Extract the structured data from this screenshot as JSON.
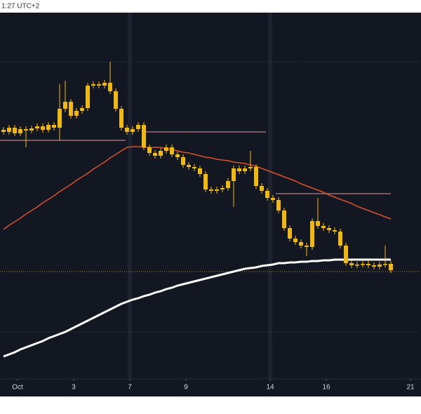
{
  "chart_data": {
    "type": "candlestick",
    "header": "1:27 UTC+2",
    "candle_color": "#f2b90d",
    "x": [
      -0.5,
      -0.3,
      -0.1,
      0.1,
      0.3,
      0.5,
      0.7,
      0.9,
      1.1,
      1.3,
      1.5,
      1.7,
      1.9,
      2.1,
      2.3,
      2.5,
      2.7,
      2.9,
      3.1,
      3.3,
      3.5,
      3.7,
      3.9,
      4.1,
      4.3,
      4.5,
      4.7,
      4.9,
      5.1,
      5.3,
      5.5,
      5.7,
      5.9,
      6.1,
      6.3,
      6.5,
      6.7,
      6.9,
      7.1,
      7.3,
      7.5,
      7.7,
      7.9,
      8.1,
      8.3,
      8.5,
      8.7,
      8.9,
      9.1,
      9.3,
      9.5,
      9.7,
      9.9,
      10.1,
      10.3,
      10.5,
      10.7,
      10.9,
      11.1,
      11.3,
      11.5,
      11.7,
      11.9,
      12.1,
      12.3,
      12.5,
      12.7,
      12.9,
      13.1,
      13.3
    ],
    "open": [
      355,
      352,
      358,
      350,
      356,
      354,
      357,
      360,
      355,
      362,
      358,
      385,
      395,
      375,
      382,
      386,
      418,
      420,
      418,
      422,
      410,
      385,
      358,
      352,
      356,
      362,
      330,
      322,
      318,
      325,
      330,
      320,
      316,
      305,
      302,
      300,
      292,
      270,
      268,
      270,
      272,
      282,
      300,
      296,
      300,
      302,
      275,
      268,
      258,
      255,
      240,
      215,
      200,
      195,
      190,
      188,
      225,
      218,
      215,
      212,
      210,
      190,
      165,
      162,
      163,
      164,
      162,
      160,
      163,
      164
    ],
    "high": [
      359,
      362,
      362,
      360,
      360,
      361,
      364,
      364,
      366,
      366,
      420,
      425,
      399,
      386,
      390,
      422,
      424,
      424,
      426,
      452,
      414,
      389,
      362,
      360,
      366,
      366,
      334,
      326,
      329,
      334,
      334,
      324,
      320,
      309,
      306,
      304,
      296,
      274,
      274,
      276,
      286,
      304,
      304,
      304,
      325,
      306,
      279,
      272,
      262,
      259,
      244,
      219,
      204,
      199,
      194,
      229,
      258,
      222,
      219,
      216,
      214,
      194,
      169,
      167,
      168,
      168,
      166,
      167,
      190,
      168
    ],
    "low": [
      348,
      348,
      346,
      346,
      330,
      350,
      353,
      351,
      351,
      354,
      340,
      380,
      371,
      371,
      378,
      382,
      414,
      414,
      414,
      406,
      381,
      354,
      348,
      348,
      352,
      326,
      318,
      314,
      314,
      321,
      316,
      312,
      301,
      298,
      296,
      288,
      266,
      264,
      264,
      266,
      268,
      245,
      292,
      292,
      296,
      271,
      264,
      254,
      251,
      236,
      211,
      196,
      191,
      186,
      175,
      184,
      214,
      211,
      208,
      206,
      186,
      161,
      158,
      158,
      159,
      158,
      156,
      156,
      159,
      151
    ],
    "close": [
      352,
      358,
      350,
      356,
      354,
      357,
      360,
      355,
      362,
      358,
      385,
      395,
      375,
      382,
      386,
      418,
      420,
      418,
      422,
      410,
      385,
      358,
      352,
      356,
      362,
      330,
      322,
      318,
      325,
      330,
      320,
      316,
      305,
      302,
      300,
      292,
      270,
      268,
      270,
      272,
      282,
      300,
      296,
      300,
      302,
      275,
      268,
      258,
      255,
      240,
      215,
      200,
      195,
      190,
      188,
      225,
      218,
      215,
      212,
      210,
      190,
      165,
      162,
      163,
      164,
      162,
      160,
      163,
      164,
      155
    ],
    "series": [
      {
        "color": "#d9502a",
        "values": [
          213,
          219,
          224,
          229,
          235,
          240,
          245,
          251,
          256,
          261,
          267,
          272,
          277,
          283,
          288,
          293,
          299,
          304,
          309,
          315,
          320,
          325,
          330,
          331,
          331,
          330,
          330,
          330,
          330,
          328,
          327,
          325,
          323,
          322,
          320,
          318,
          316,
          315,
          313,
          312,
          311,
          309,
          308,
          307,
          305,
          303,
          300,
          297,
          294,
          291,
          288,
          285,
          282,
          278,
          275,
          272,
          269,
          266,
          262,
          259,
          256,
          253,
          250,
          246,
          243,
          240,
          237,
          234,
          231,
          228
        ]
      },
      {
        "color": "#ffffff",
        "values": [
          32,
          35,
          38,
          42,
          45,
          48,
          51,
          54,
          58,
          61,
          64,
          67,
          71,
          75,
          79,
          83,
          87,
          91,
          95,
          99,
          103,
          107,
          110,
          113,
          115,
          118,
          120,
          123,
          125,
          128,
          130,
          133,
          135,
          137,
          139,
          141,
          143,
          145,
          147,
          149,
          151,
          153,
          155,
          157,
          158,
          159,
          161,
          162,
          163,
          165,
          165,
          166,
          166,
          167,
          167,
          168,
          168,
          169,
          169,
          170,
          170,
          170,
          170,
          170,
          170,
          170,
          170,
          170,
          170,
          170
        ]
      }
    ],
    "levels": [
      {
        "value": 340,
        "from": -0.625,
        "to": 3.85,
        "color": "#7a5a5e"
      },
      {
        "value": 352,
        "from": 4.55,
        "to": 8.85,
        "color": "#7a5a5e"
      },
      {
        "value": 264,
        "from": 9.2,
        "to": 13.3,
        "color": "#7a5a5e"
      },
      {
        "value": 170,
        "from": 11.7,
        "to": 13.3,
        "color": "#e8e8e8"
      }
    ],
    "dotted_levels": [
      {
        "value": 153,
        "color": "#c98a1e"
      },
      {
        "value": 452,
        "color": "#3a3f4c"
      },
      {
        "value": 67,
        "color": "#3a3f4c"
      }
    ],
    "separators": [
      4,
      9
    ],
    "xlim": [
      -0.625,
      14.375
    ],
    "ylim": [
      0,
      522
    ],
    "xticks": [
      {
        "value": 0,
        "label": "Oct"
      },
      {
        "value": 2,
        "label": "3"
      },
      {
        "value": 4,
        "label": "7"
      },
      {
        "value": 6,
        "label": "9"
      },
      {
        "value": 9,
        "label": "14"
      },
      {
        "value": 11,
        "label": "16"
      },
      {
        "value": 14,
        "label": "21"
      }
    ]
  }
}
